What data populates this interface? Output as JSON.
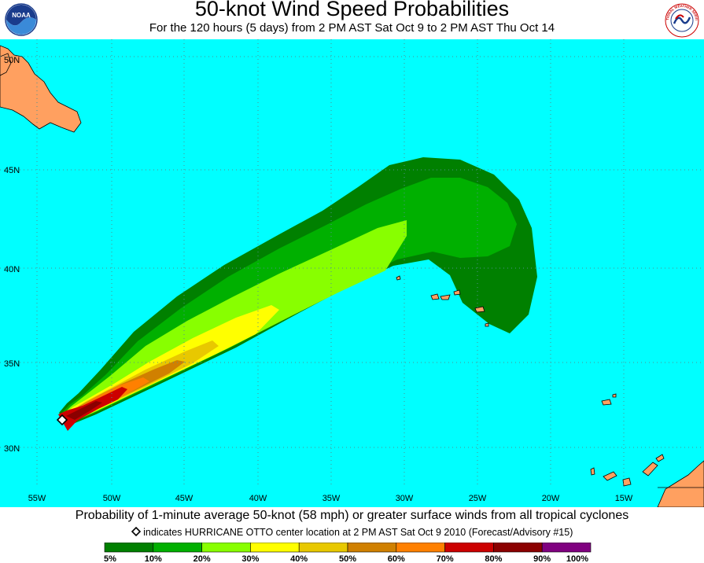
{
  "header": {
    "title": "50-knot Wind Speed Probabilities",
    "subtitle": "For the 120 hours (5 days) from 2 PM AST Sat Oct 9 to 2 PM AST Thu Oct 14"
  },
  "logos": {
    "left": {
      "name": "noaa-logo",
      "text": "NOAA"
    },
    "right": {
      "name": "national-weather-service-logo",
      "text": "NATIONAL WEATHER SERVICE"
    }
  },
  "map": {
    "ocean_color": "#00ffff",
    "land_color": "#ffa060",
    "grid_color": "#4f8f8f",
    "lat_labels": [
      "50N",
      "45N",
      "40N",
      "35N",
      "30N"
    ],
    "lon_labels": [
      "55W",
      "50W",
      "45W",
      "40W",
      "35W",
      "30W",
      "25W",
      "20W",
      "15W"
    ],
    "storm_marker": {
      "name": "HURRICANE OTTO",
      "symbol": "diamond",
      "lat": 31.6,
      "lon": -53.4
    }
  },
  "footer": {
    "description": "Probability of 1-minute average 50-knot (58 mph) or greater surface winds from all tropical cyclones",
    "marker_note": "indicates HURRICANE OTTO center location at 2 PM AST Sat Oct 9 2010 (Forecast/Advisory #15)"
  },
  "legend": {
    "bins": [
      {
        "color": "#008000"
      },
      {
        "color": "#00b000"
      },
      {
        "color": "#88ff00"
      },
      {
        "color": "#ffff00"
      },
      {
        "color": "#e8c800"
      },
      {
        "color": "#d08000"
      },
      {
        "color": "#ff8000"
      },
      {
        "color": "#cc0000"
      },
      {
        "color": "#8b0000"
      },
      {
        "color": "#800080"
      }
    ],
    "labels": [
      "5%",
      "10%",
      "20%",
      "30%",
      "40%",
      "50%",
      "60%",
      "70%",
      "80%",
      "90%",
      "100%"
    ]
  }
}
